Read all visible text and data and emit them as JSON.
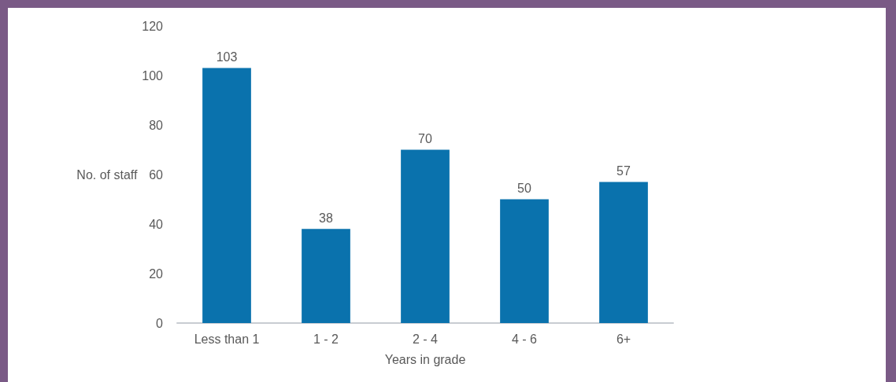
{
  "chart_data": {
    "type": "bar",
    "xlabel": "Years in grade",
    "ylabel": "No. of staff",
    "categories": [
      "Less than 1",
      "1 - 2",
      "2 - 4",
      "4 - 6",
      "6+"
    ],
    "values": [
      103,
      38,
      70,
      50,
      57
    ],
    "color": "#0a72ad",
    "ylim": [
      0,
      120
    ],
    "yticks": [
      0,
      20,
      40,
      60,
      80,
      100,
      120
    ],
    "grid": false,
    "data_labels": true
  }
}
